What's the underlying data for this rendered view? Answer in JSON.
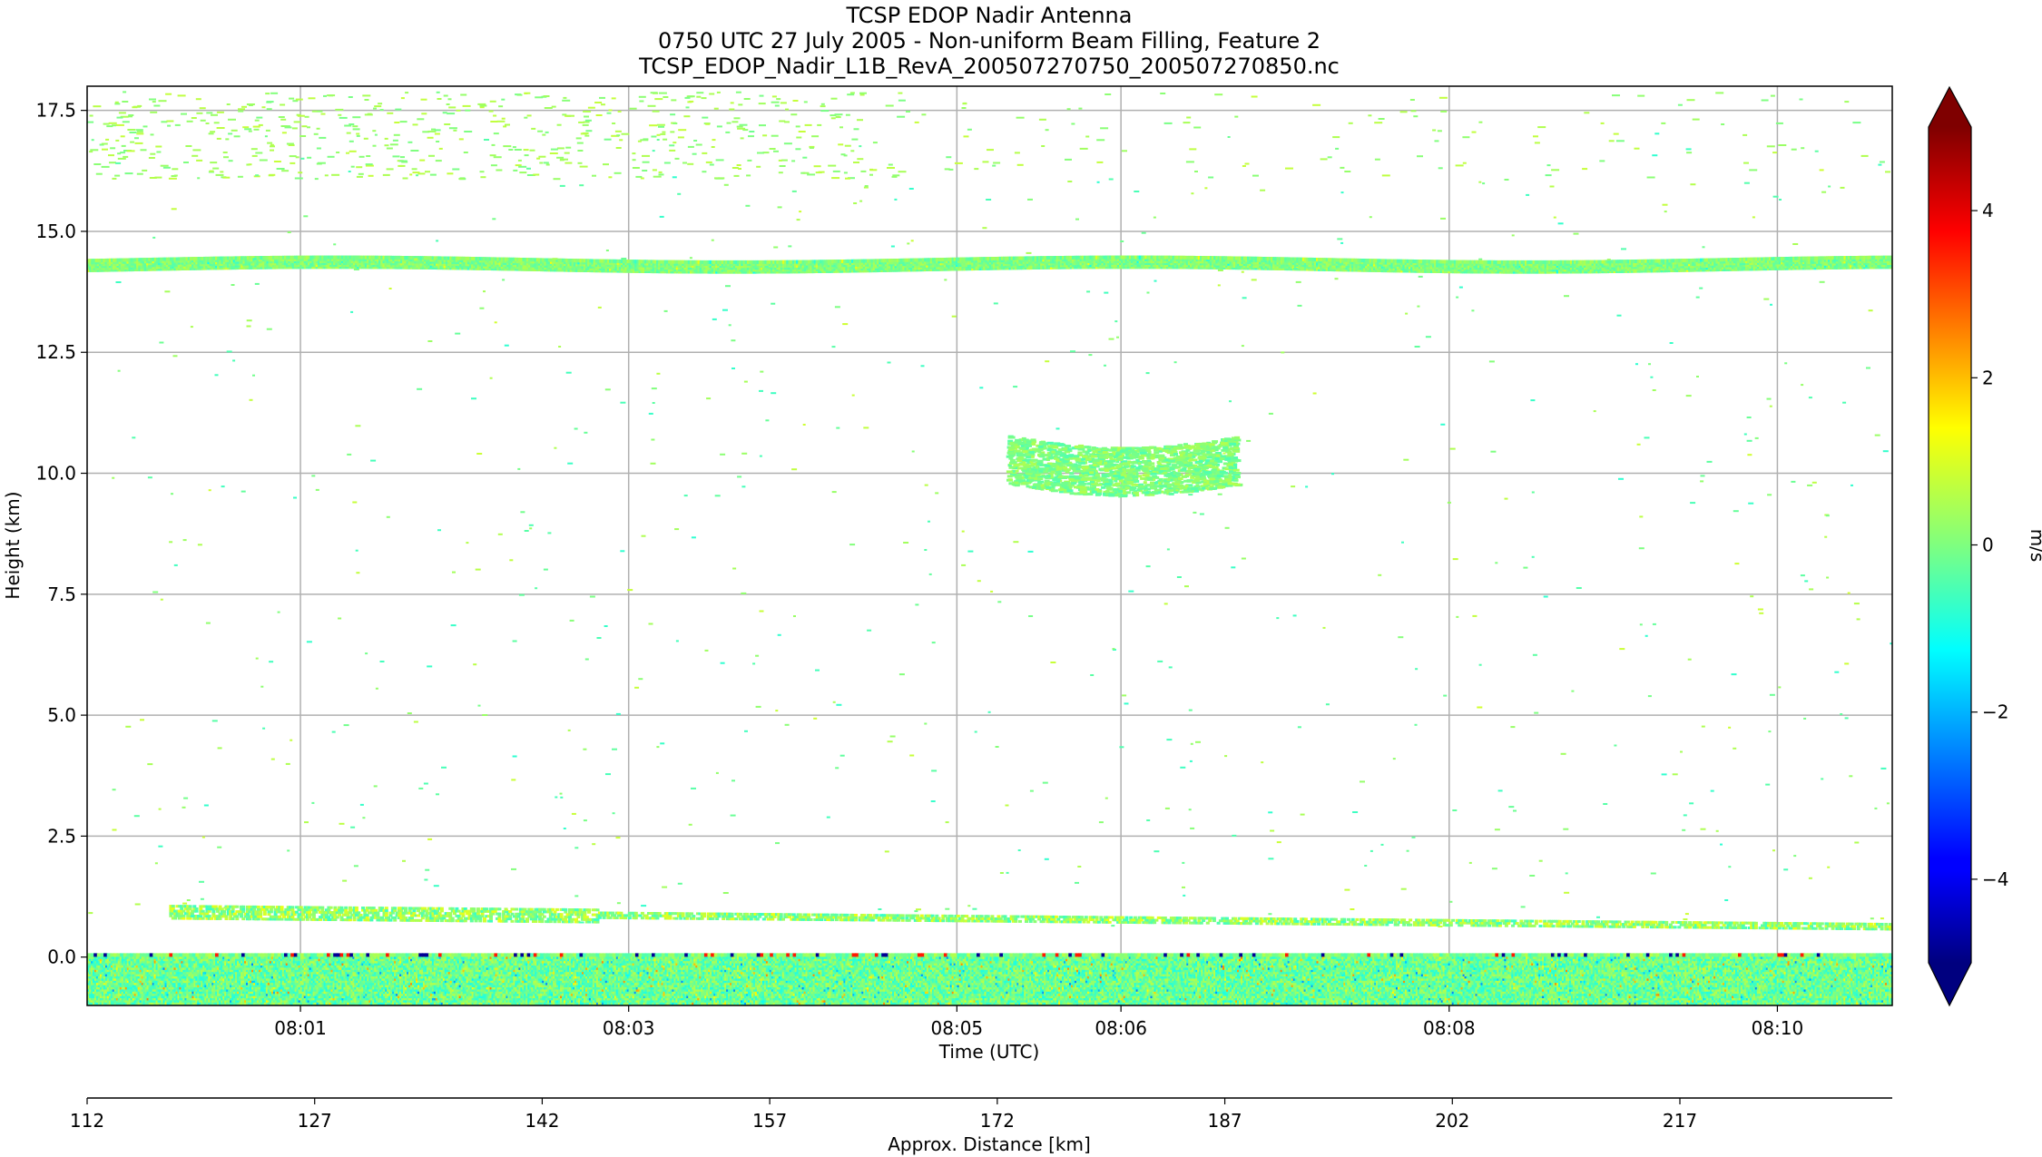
{
  "chart_data": {
    "type": "heatmap",
    "title_lines": [
      "TCSP EDOP Nadir Antenna",
      "0750 UTC 27 July 2005 - Non-uniform Beam Filling, Feature 2",
      "TCSP_EDOP_Nadir_L1B_RevA_200507270750_200507270850.nc"
    ],
    "xlabel": "Time (UTC)",
    "ylabel": "Height (km)",
    "x_ticks": [
      "08:01",
      "08:03",
      "08:05",
      "08:06",
      "08:08",
      "08:10"
    ],
    "x_tick_minutes": [
      1,
      3,
      5,
      6,
      8,
      10
    ],
    "x_range_minutes": [
      -0.3,
      10.7
    ],
    "y_ticks": [
      0.0,
      2.5,
      5.0,
      7.5,
      10.0,
      12.5,
      15.0,
      17.5
    ],
    "y_tick_labels": [
      "0.0",
      "2.5",
      "5.0",
      "7.5",
      "10.0",
      "12.5",
      "15.0",
      "17.5"
    ],
    "ylim": [
      -1.0,
      18.0
    ],
    "grid": true,
    "secondary_x": {
      "label": "Approx. Distance [km]",
      "ticks": [
        112,
        127,
        142,
        157,
        172,
        187,
        202,
        217
      ],
      "range": [
        112,
        231
      ]
    },
    "colorbar": {
      "label": "m/s",
      "range": [
        -5,
        5
      ],
      "ticks": [
        -4,
        -2,
        0,
        2,
        4
      ],
      "tick_labels": [
        "−4",
        "−2",
        "0",
        "2",
        "4"
      ],
      "extend": "both",
      "colormap": "jet"
    },
    "features": [
      {
        "name": "upper cloud layer",
        "height_km": 14.35,
        "x_range_minutes": [
          -0.3,
          10.7
        ],
        "velocity_ms": [
          -1.0,
          1.0
        ]
      },
      {
        "name": "sparse echoes",
        "height_km": [
          16.1,
          17.9
        ],
        "velocity_ms": [
          0.0,
          0.5
        ]
      },
      {
        "name": "mid-level echo",
        "height_km": [
          9.5,
          11.0
        ],
        "x_range_minutes": [
          5.3,
          6.7
        ],
        "velocity_ms": [
          -0.5,
          0.5
        ]
      },
      {
        "name": "low cloud layer",
        "height_km": [
          0.5,
          1.2
        ],
        "x_range_minutes": [
          0.0,
          10.7
        ],
        "velocity_ms": [
          -1.0,
          1.5
        ]
      },
      {
        "name": "surface echo",
        "height_km": [
          -1.0,
          0.05
        ],
        "x_range_minutes": [
          -0.3,
          10.7
        ],
        "velocity_ms": [
          -2.5,
          2.5
        ]
      }
    ]
  },
  "colors": {
    "frame": "#000000",
    "grid": "#b0b0b0",
    "background": "#ffffff"
  }
}
